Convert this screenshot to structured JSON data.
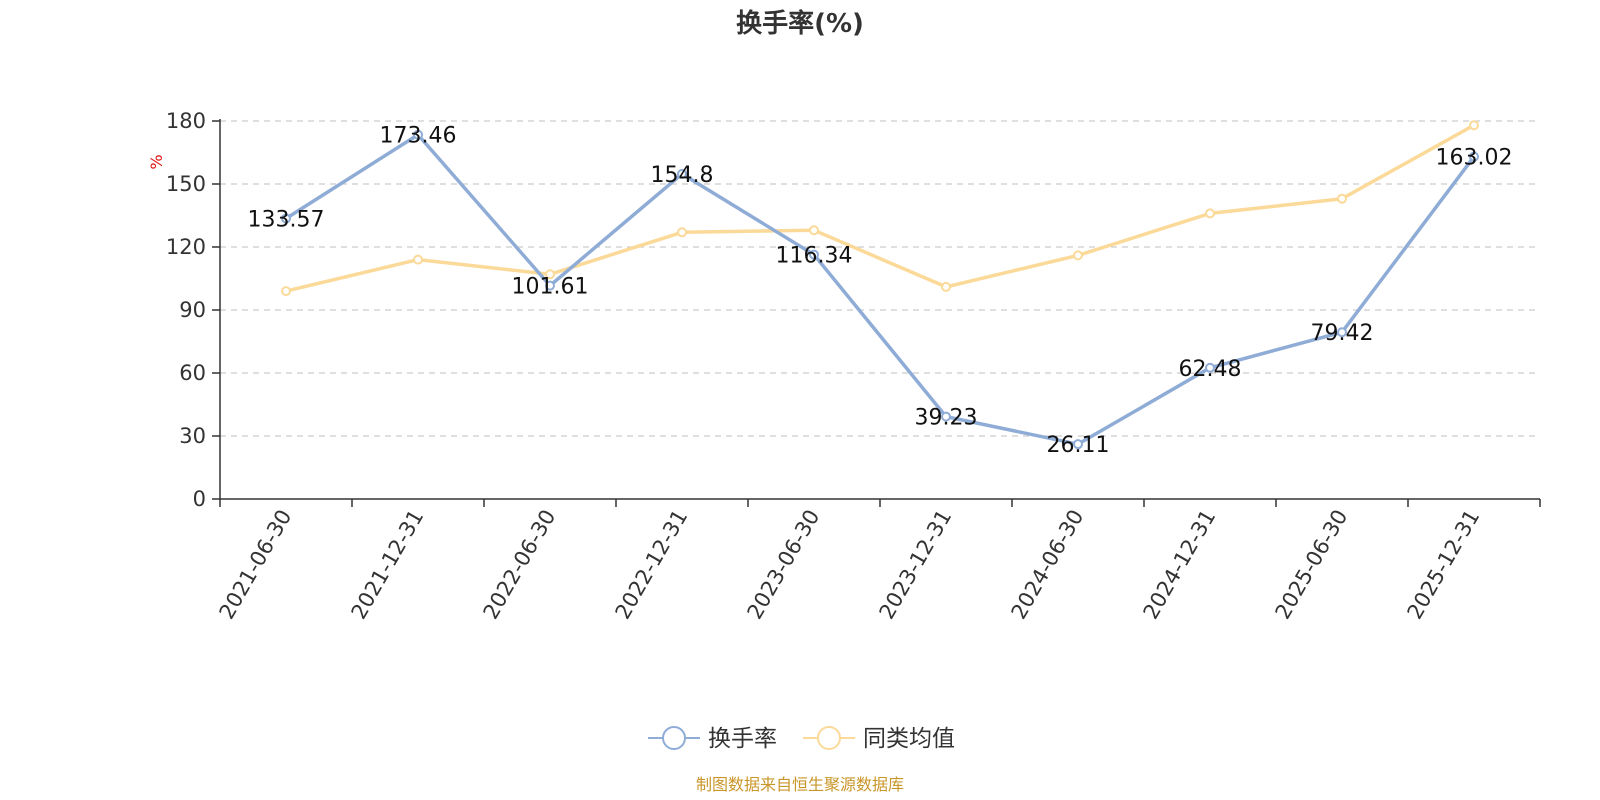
{
  "chart_data": {
    "type": "line",
    "title": "换手率(%)",
    "ylabel": "%",
    "xlabel": "",
    "ylim": [
      0,
      180
    ],
    "yticks": [
      0,
      30,
      60,
      90,
      120,
      150,
      180
    ],
    "grid": true,
    "legend_position": "bottom",
    "categories": [
      "2021-06-30",
      "2021-12-31",
      "2022-06-30",
      "2022-12-31",
      "2023-06-30",
      "2023-12-31",
      "2024-06-30",
      "2024-12-31",
      "2025-06-30",
      "2025-12-31"
    ],
    "series": [
      {
        "name": "换手率",
        "color": "#8eacd6",
        "values": [
          133.57,
          173.46,
          101.61,
          154.8,
          116.34,
          39.23,
          26.11,
          62.48,
          79.42,
          163.02
        ],
        "labels": [
          "133.57",
          "173.46",
          "101.61",
          "154.8",
          "116.34",
          "39.23",
          "26.11",
          "62.48",
          "79.42",
          "163.02"
        ]
      },
      {
        "name": "同类均值",
        "color": "#fbd998",
        "values": [
          99,
          114,
          107,
          127,
          128,
          101,
          116,
          136,
          143,
          178
        ]
      }
    ],
    "source": "制图数据来自恒生聚源数据库"
  }
}
